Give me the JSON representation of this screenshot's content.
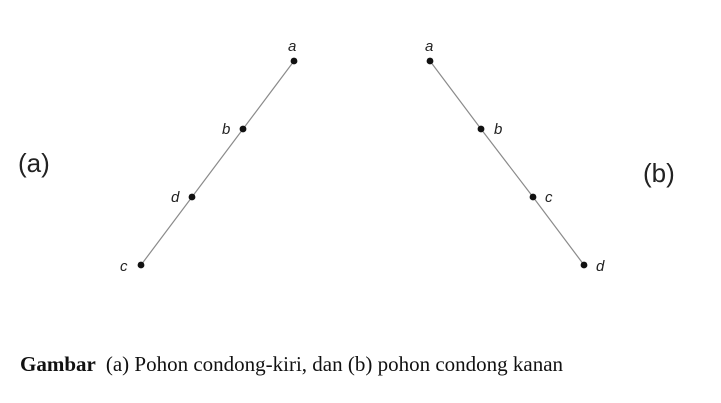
{
  "figure": {
    "trees": [
      {
        "panel_label": "(a)",
        "nodes": [
          {
            "id": "a",
            "label": "a"
          },
          {
            "id": "b",
            "label": "b"
          },
          {
            "id": "d",
            "label": "d"
          },
          {
            "id": "c",
            "label": "c"
          }
        ],
        "edges": [
          [
            "a",
            "b"
          ],
          [
            "b",
            "d"
          ],
          [
            "d",
            "c"
          ]
        ]
      },
      {
        "panel_label": "(b)",
        "nodes": [
          {
            "id": "a",
            "label": "a"
          },
          {
            "id": "b",
            "label": "b"
          },
          {
            "id": "c",
            "label": "c"
          },
          {
            "id": "d",
            "label": "d"
          }
        ],
        "edges": [
          [
            "a",
            "b"
          ],
          [
            "b",
            "c"
          ],
          [
            "c",
            "d"
          ]
        ]
      }
    ],
    "caption": {
      "lead": "Gambar",
      "text": "(a) Pohon condong-kiri, dan (b) pohon condong kanan"
    }
  }
}
